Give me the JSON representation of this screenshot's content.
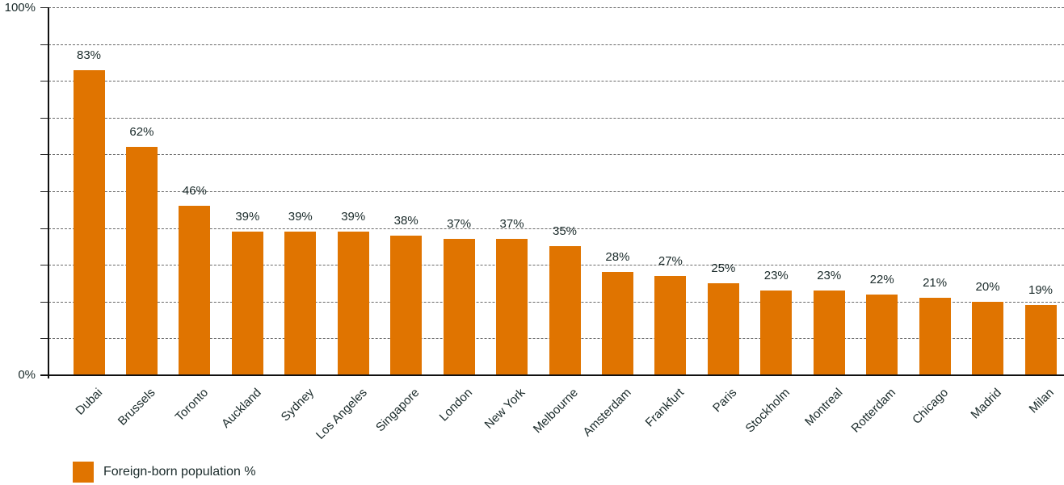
{
  "chart_data": {
    "type": "bar",
    "title": "",
    "xlabel": "",
    "ylabel": "",
    "ylim": [
      0,
      100
    ],
    "y_ticks_labeled": [
      "0%",
      "100%"
    ],
    "gridlines_every": 10,
    "grid": true,
    "legend_position": "bottom-left",
    "bar_color": "#E07400",
    "categories": [
      "Dubai",
      "Brussels",
      "Toronto",
      "Auckland",
      "Sydney",
      "Los Angeles",
      "Singapore",
      "London",
      "New York",
      "Melbourne",
      "Amsterdam",
      "Frankfurt",
      "Paris",
      "Stockholm",
      "Montreal",
      "Rotterdam",
      "Chicago",
      "Madrid",
      "Milan"
    ],
    "series": [
      {
        "name": "Foreign-born population %",
        "values": [
          83,
          62,
          46,
          39,
          39,
          39,
          38,
          37,
          37,
          35,
          28,
          27,
          25,
          23,
          23,
          22,
          21,
          20,
          19
        ]
      }
    ],
    "value_labels": [
      "83%",
      "62%",
      "46%",
      "39%",
      "39%",
      "39%",
      "38%",
      "37%",
      "37%",
      "35%",
      "28%",
      "27%",
      "25%",
      "23%",
      "23%",
      "22%",
      "21%",
      "20%",
      "19%"
    ]
  },
  "axis": {
    "y_top_label": "100%",
    "y_bottom_label": "0%"
  },
  "legend": {
    "label": "Foreign-born population %"
  }
}
